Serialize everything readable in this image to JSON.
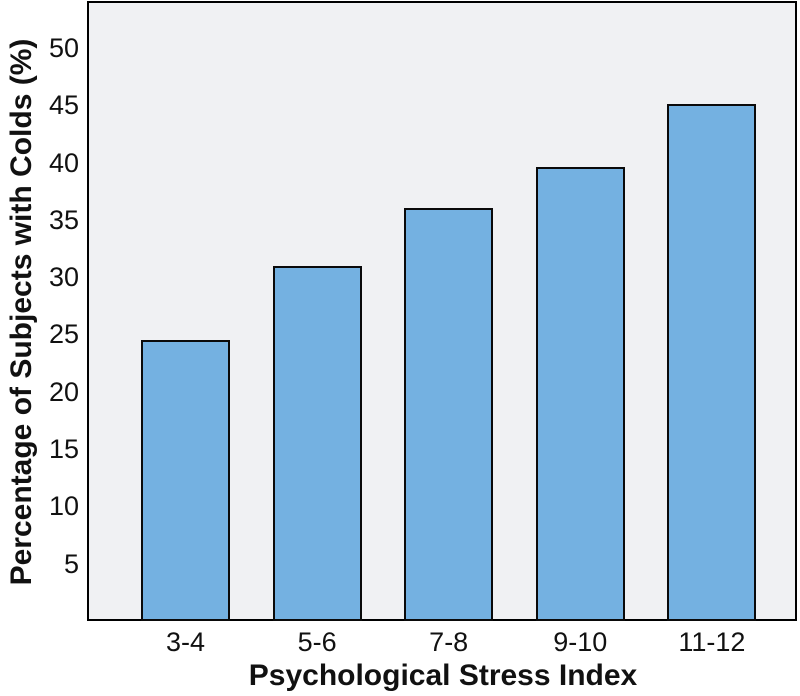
{
  "chart_data": {
    "type": "bar",
    "title": "",
    "categories": [
      "3-4",
      "5-6",
      "7-8",
      "9-10",
      "11-12"
    ],
    "values": [
      24.5,
      31,
      36,
      39.6,
      45.1
    ],
    "xlabel": "Psychological Stress Index",
    "ylabel": "Percentage of Subjects with Colds (%)",
    "yticks": [
      5,
      10,
      15,
      20,
      25,
      30,
      35,
      40,
      45,
      50
    ],
    "ylim": [
      0,
      54.1
    ],
    "grid": false,
    "legend_position": "none",
    "colors": {
      "bar_fill": "#74b1e1",
      "bar_edge": "#0a0a0a",
      "plot_background": "#f0f1f3",
      "frame": "#000000",
      "text": "#111111",
      "page_background": "#ffffff"
    }
  }
}
